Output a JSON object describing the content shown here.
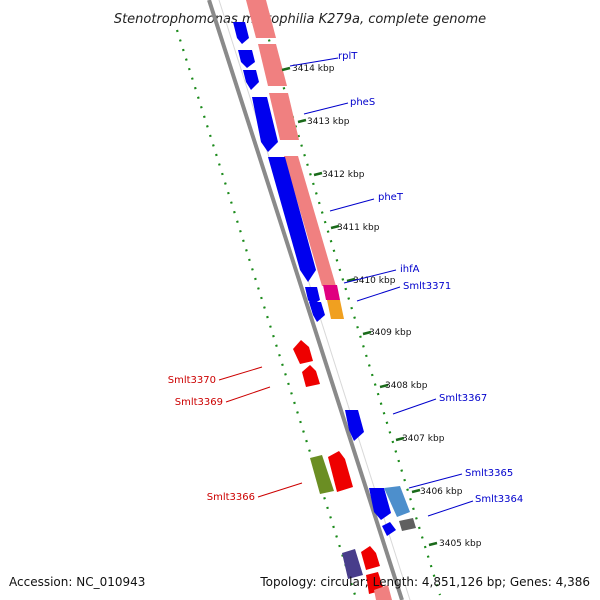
{
  "title": "Stenotrophomonas maltophilia K279a, complete genome",
  "footer": {
    "accession": "Accession: NC_010943",
    "summary": "Topology: circular; Length: 4,851,126 bp; Genes: 4,386"
  },
  "ticks": [
    "3414 kbp",
    "3413 kbp",
    "3412 kbp",
    "3411 kbp",
    "3410 kbp",
    "3409 kbp",
    "3408 kbp",
    "3407 kbp",
    "3406 kbp",
    "3405 kbp"
  ],
  "labels": {
    "forward": [
      "rplT",
      "pheS",
      "pheT",
      "ihfA",
      "Smlt3371",
      "Smlt3367",
      "Smlt3365",
      "Smlt3364"
    ],
    "reverse": [
      "Smlt3370",
      "Smlt3369",
      "Smlt3366"
    ]
  },
  "colors": {
    "forward_gene": "#0000ee",
    "reverse_gene": "#ee0000",
    "cds_track": "#f08080",
    "label_forward": "#0000cc",
    "label_reverse": "#cc0000",
    "gc_dots": "#1a8a1a",
    "backbone": "#888888"
  }
}
